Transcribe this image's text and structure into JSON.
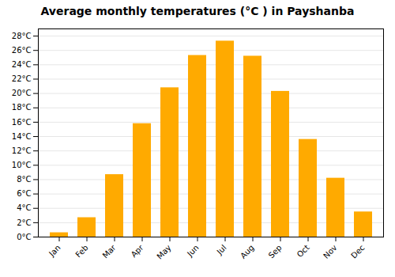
{
  "chart_data": {
    "type": "bar",
    "title": "Average monthly temperatures (°C ) in Payshanba",
    "categories": [
      "Jan",
      "Feb",
      "Mar",
      "Apr",
      "May",
      "Jun",
      "Jul",
      "Aug",
      "Sep",
      "Oct",
      "Nov",
      "Dec"
    ],
    "values": [
      0.6,
      2.7,
      8.7,
      15.8,
      20.8,
      25.3,
      27.3,
      25.2,
      20.3,
      13.6,
      8.2,
      3.5
    ],
    "color": "#FFAA00",
    "ylim": [
      0,
      29
    ],
    "yticks": [
      {
        "value": 0,
        "label": "0°C"
      },
      {
        "value": 2,
        "label": "2°C"
      },
      {
        "value": 4,
        "label": "4°C"
      },
      {
        "value": 6,
        "label": "6°C"
      },
      {
        "value": 8,
        "label": "8°C"
      },
      {
        "value": 10,
        "label": "10°C"
      },
      {
        "value": 12,
        "label": "12°C"
      },
      {
        "value": 14,
        "label": "14°C"
      },
      {
        "value": 16,
        "label": "16°C"
      },
      {
        "value": 18,
        "label": "18°C"
      },
      {
        "value": 20,
        "label": "20°C"
      },
      {
        "value": 22,
        "label": "22°C"
      },
      {
        "value": 24,
        "label": "24°C"
      },
      {
        "value": 26,
        "label": "26°C"
      },
      {
        "value": 28,
        "label": "28°C"
      }
    ],
    "grid": true
  }
}
